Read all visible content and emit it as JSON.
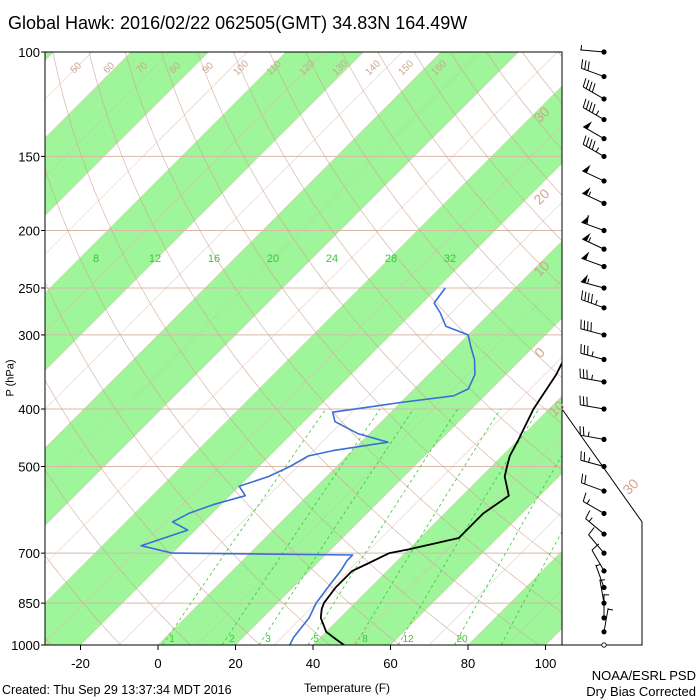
{
  "header": {
    "title": "Global Hawk: 2016/02/22 062505(GMT) 34.83N 164.49W",
    "created": "Created: Thu Sep 29 13:37:34 MDT 2016",
    "credit_line1": "NOAA/ESRL PSD",
    "credit_line2": "Dry Bias Corrected"
  },
  "chart_data": {
    "type": "line",
    "subtype": "skew-T log-p sounding",
    "xlabel": "Temperature (F)",
    "ylabel": "P (hPa)",
    "xlim": [
      -30,
      110
    ],
    "ylim": [
      1000,
      100
    ],
    "y_scale": "log",
    "pressure_ticks": [
      100,
      150,
      200,
      250,
      300,
      400,
      500,
      700,
      850,
      1000
    ],
    "temperature_ticks": [
      -20,
      0,
      20,
      40,
      60,
      80,
      100
    ],
    "mixing_ratio_labels": [
      "1",
      "2",
      "3",
      "5",
      "8",
      "12",
      "20"
    ],
    "upper_mixing_labels": [
      "8",
      "12",
      "16",
      "20",
      "24",
      "28",
      "32"
    ],
    "isotherm_labels_top": [
      "50",
      "60",
      "70",
      "80",
      "90",
      "100",
      "110",
      "120",
      "130",
      "140",
      "150",
      "160"
    ],
    "isotherm_labels_side": [
      "30",
      "20",
      "10",
      "0",
      "10",
      "30"
    ],
    "colors": {
      "temperature": "#000000",
      "dewpoint": "#3a6fd8",
      "band": "#9ef59a",
      "isobar": "#d9b8a8",
      "mixing": "#36c936",
      "adiabat": "#cfa58f"
    },
    "series": [
      {
        "id": "temperature",
        "points": [
          [
            1000,
            48
          ],
          [
            975,
            44
          ],
          [
            950,
            40
          ],
          [
            900,
            35
          ],
          [
            870,
            33
          ],
          [
            850,
            32
          ],
          [
            800,
            31
          ],
          [
            750,
            31
          ],
          [
            730,
            33
          ],
          [
            700,
            36
          ],
          [
            690,
            40
          ],
          [
            660,
            50
          ],
          [
            600,
            50
          ],
          [
            560,
            52
          ],
          [
            520,
            46
          ],
          [
            500,
            44
          ],
          [
            480,
            42
          ],
          [
            450,
            40
          ],
          [
            400,
            36
          ],
          [
            350,
            33
          ],
          [
            320,
            30
          ],
          [
            300,
            28
          ],
          [
            280,
            29
          ],
          [
            250,
            28
          ],
          [
            230,
            30
          ],
          [
            210,
            40
          ],
          [
            200,
            45
          ],
          [
            180,
            47
          ],
          [
            165,
            47
          ],
          [
            150,
            50
          ],
          [
            140,
            54
          ],
          [
            130,
            56
          ],
          [
            120,
            58
          ],
          [
            110,
            62
          ],
          [
            100,
            64
          ]
        ]
      },
      {
        "id": "dewpoint",
        "points": [
          [
            1000,
            34
          ],
          [
            970,
            33
          ],
          [
            900,
            32
          ],
          [
            850,
            30
          ],
          [
            800,
            29
          ],
          [
            750,
            28
          ],
          [
            720,
            27
          ],
          [
            705,
            27
          ],
          [
            700,
            -20
          ],
          [
            680,
            -30
          ],
          [
            640,
            -22
          ],
          [
            620,
            -28
          ],
          [
            600,
            -26
          ],
          [
            580,
            -22
          ],
          [
            560,
            -16
          ],
          [
            540,
            -20
          ],
          [
            520,
            -15
          ],
          [
            500,
            -12
          ],
          [
            480,
            -10
          ],
          [
            470,
            -5
          ],
          [
            455,
            7
          ],
          [
            440,
            -3
          ],
          [
            420,
            -12
          ],
          [
            405,
            -15
          ],
          [
            390,
            0
          ],
          [
            380,
            12
          ],
          [
            370,
            14
          ],
          [
            350,
            12
          ],
          [
            330,
            8
          ],
          [
            315,
            4
          ],
          [
            300,
            0
          ],
          [
            290,
            -8
          ],
          [
            275,
            -13
          ],
          [
            265,
            -17
          ],
          [
            250,
            -18
          ]
        ]
      }
    ],
    "wind_barbs": [
      [
        100,
        275,
        5
      ],
      [
        110,
        290,
        30
      ],
      [
        120,
        300,
        40
      ],
      [
        130,
        300,
        45
      ],
      [
        140,
        300,
        50
      ],
      [
        150,
        300,
        45
      ],
      [
        165,
        295,
        50
      ],
      [
        180,
        295,
        55
      ],
      [
        200,
        290,
        60
      ],
      [
        215,
        295,
        55
      ],
      [
        230,
        290,
        50
      ],
      [
        250,
        285,
        55
      ],
      [
        270,
        290,
        45
      ],
      [
        300,
        285,
        40
      ],
      [
        330,
        285,
        35
      ],
      [
        360,
        280,
        35
      ],
      [
        400,
        280,
        30
      ],
      [
        450,
        280,
        25
      ],
      [
        500,
        285,
        25
      ],
      [
        550,
        290,
        20
      ],
      [
        600,
        300,
        15
      ],
      [
        650,
        310,
        15
      ],
      [
        700,
        320,
        10
      ],
      [
        750,
        330,
        10
      ],
      [
        800,
        340,
        5
      ],
      [
        850,
        350,
        5
      ],
      [
        900,
        0,
        5
      ],
      [
        950,
        10,
        5
      ],
      [
        1000,
        20,
        0
      ]
    ]
  }
}
